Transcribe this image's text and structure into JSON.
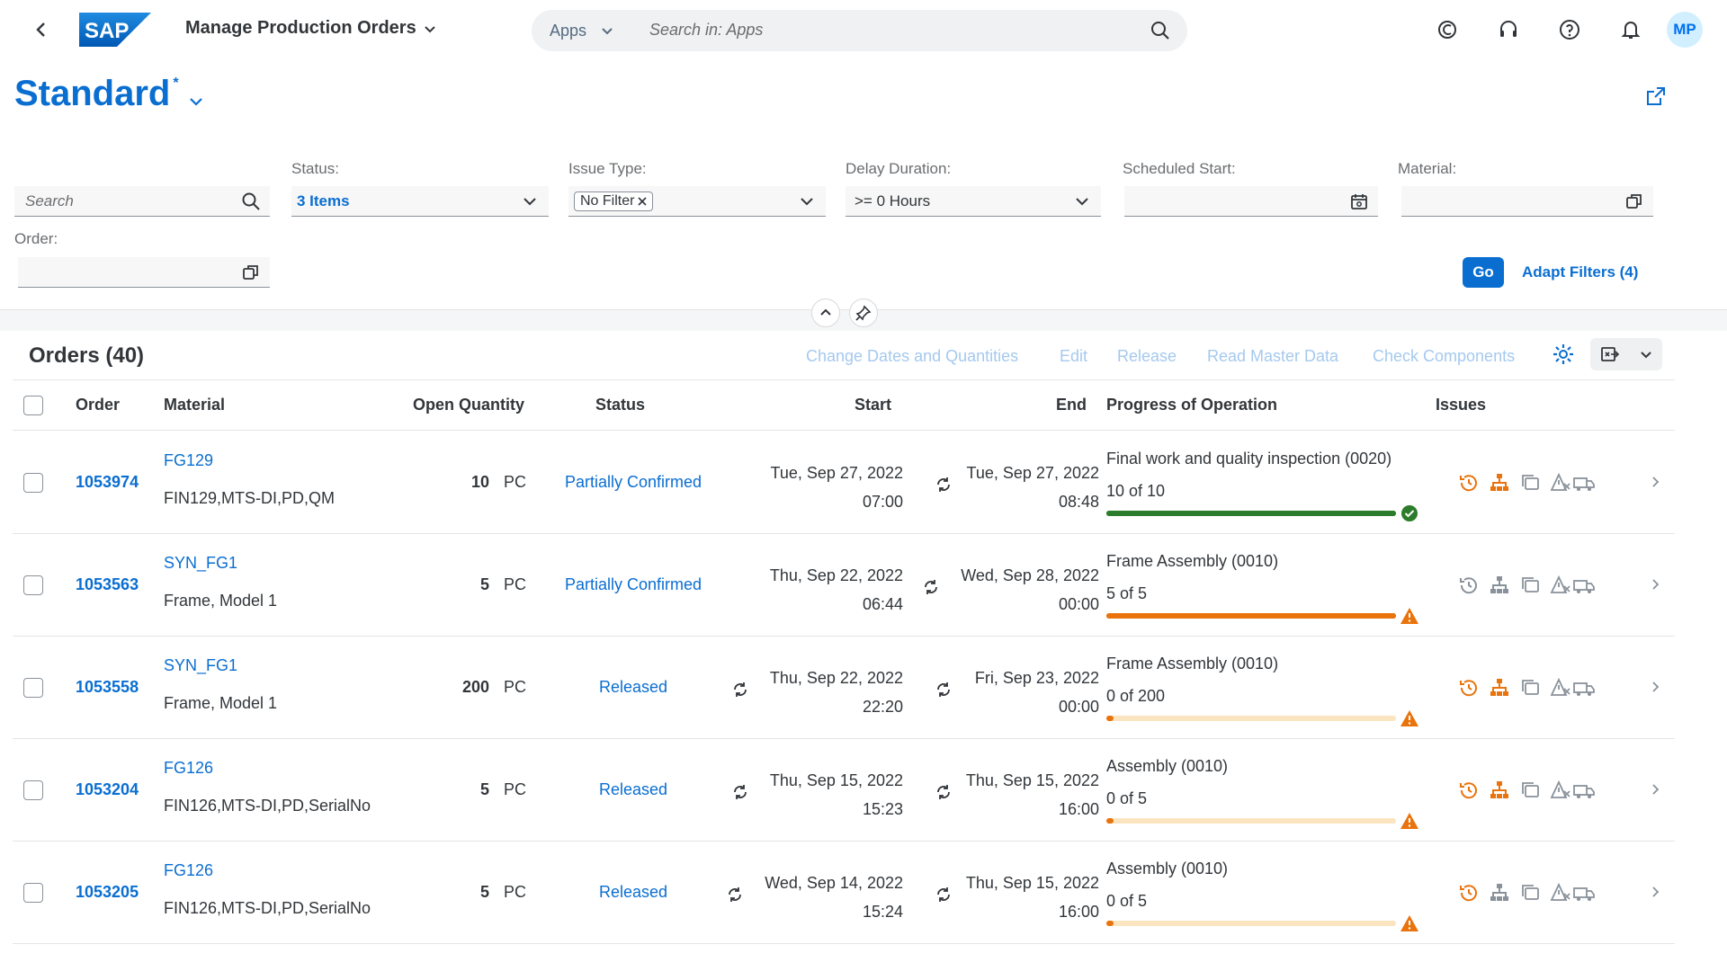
{
  "shell": {
    "app_title": "Manage Production Orders",
    "search_scope": "Apps",
    "search_placeholder": "Search in: Apps",
    "avatar_initials": "MP"
  },
  "variant": {
    "name": "Standard",
    "dirty_marker": "*"
  },
  "filters": {
    "search_placeholder": "Search",
    "status_label": "Status:",
    "status_value": "3 Items",
    "issue_type_label": "Issue Type:",
    "issue_type_token": "No Filter",
    "delay_label": "Delay Duration:",
    "delay_value": ">= 0 Hours",
    "sched_start_label": "Scheduled Start:",
    "material_label": "Material:",
    "order_label": "Order:",
    "go_label": "Go",
    "adapt_label": "Adapt Filters (4)"
  },
  "table": {
    "title": "Orders (40)",
    "actions": [
      "Change Dates and Quantities",
      "Edit",
      "Release",
      "Read Master Data",
      "Check Components"
    ],
    "columns": {
      "order": "Order",
      "material": "Material",
      "open_qty": "Open Quantity",
      "status": "Status",
      "start": "Start",
      "end": "End",
      "progress": "Progress of Operation",
      "issues": "Issues"
    },
    "rows": [
      {
        "order": "1053974",
        "material": "FG129",
        "material_desc": "FIN129,MTS-DI,PD,QM",
        "qty": "10",
        "unit": "PC",
        "status": "Partially Confirmed",
        "start_date": "Tue, Sep 27, 2022",
        "start_time": "07:00",
        "end_date": "Tue, Sep 27, 2022",
        "end_time": "08:48",
        "operation": "Final work and quality inspection (0020)",
        "progress_text": "10 of 10",
        "progress_fraction": 1.0,
        "progress_color": "#2b7c2b",
        "progress_state": "success",
        "issue_colors": [
          "#e9730c",
          "#e9730c",
          "#89919a",
          "#89919a",
          "#89919a"
        ]
      },
      {
        "order": "1053563",
        "material": "SYN_FG1",
        "material_desc": "Frame, Model 1",
        "qty": "5",
        "unit": "PC",
        "status": "Partially Confirmed",
        "start_date": "Thu, Sep 22, 2022",
        "start_time": "06:44",
        "end_date": "Wed, Sep 28, 2022",
        "end_time": "00:00",
        "operation": "Frame Assembly (0010)",
        "progress_text": "5 of 5",
        "progress_fraction": 1.0,
        "progress_color": "#e9730c",
        "progress_state": "warning",
        "issue_colors": [
          "#89919a",
          "#89919a",
          "#89919a",
          "#89919a",
          "#89919a"
        ]
      },
      {
        "order": "1053558",
        "material": "SYN_FG1",
        "material_desc": "Frame, Model 1",
        "qty": "200",
        "unit": "PC",
        "status": "Released",
        "start_date": "Thu, Sep 22, 2022",
        "start_time": "22:20",
        "end_date": "Fri, Sep 23, 2022",
        "end_time": "00:00",
        "operation": "Frame Assembly (0010)",
        "progress_text": "0 of 200",
        "progress_fraction": 0,
        "progress_color": "#e9730c",
        "progress_state": "warning",
        "issue_colors": [
          "#e9730c",
          "#e9730c",
          "#89919a",
          "#89919a",
          "#89919a"
        ]
      },
      {
        "order": "1053204",
        "material": "FG126",
        "material_desc": "FIN126,MTS-DI,PD,SerialNo",
        "qty": "5",
        "unit": "PC",
        "status": "Released",
        "start_date": "Thu, Sep 15, 2022",
        "start_time": "15:23",
        "end_date": "Thu, Sep 15, 2022",
        "end_time": "16:00",
        "operation": "Assembly (0010)",
        "progress_text": "0 of 5",
        "progress_fraction": 0,
        "progress_color": "#e9730c",
        "progress_state": "warning",
        "issue_colors": [
          "#e9730c",
          "#e9730c",
          "#89919a",
          "#89919a",
          "#89919a"
        ]
      },
      {
        "order": "1053205",
        "material": "FG126",
        "material_desc": "FIN126,MTS-DI,PD,SerialNo",
        "qty": "5",
        "unit": "PC",
        "status": "Released",
        "start_date": "Wed, Sep 14, 2022",
        "start_time": "15:24",
        "end_date": "Thu, Sep 15, 2022",
        "end_time": "16:00",
        "operation": "Assembly (0010)",
        "progress_text": "0 of 5",
        "progress_fraction": 0,
        "progress_color": "#e9730c",
        "progress_state": "warning",
        "issue_colors": [
          "#e9730c",
          "#89919a",
          "#89919a",
          "#89919a",
          "#89919a"
        ]
      }
    ]
  },
  "colors": {
    "brand": "#0a6ed1",
    "warning": "#e9730c",
    "success": "#2b7c2b"
  },
  "icons": [
    "back-icon",
    "search-icon",
    "copilot-icon",
    "headset-icon",
    "help-icon",
    "bell-icon",
    "share-icon",
    "value-help-icon",
    "calendar-icon",
    "settings-icon",
    "export-icon",
    "sync-icon",
    "history-icon",
    "hierarchy-icon",
    "copy-icon",
    "warning-triangle-icon",
    "truck-icon"
  ]
}
